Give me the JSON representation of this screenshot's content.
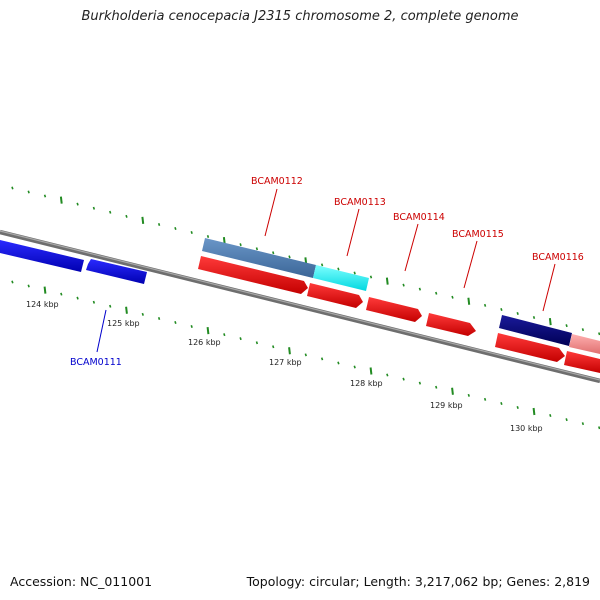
{
  "title": "Burkholderia cenocepacia J2315 chromosome 2, complete genome",
  "footer": {
    "accession": "Accession: NC_011001",
    "stats": "Topology: circular; Length: 3,217,062 bp; Genes: 2,819"
  },
  "ticks": [
    "124 kbp",
    "125 kbp",
    "126 kbp",
    "127 kbp",
    "128 kbp",
    "129 kbp",
    "130 kbp"
  ],
  "gene_labels": [
    {
      "name": "BCAM0111",
      "color": "#0000cc"
    },
    {
      "name": "BCAM0112",
      "color": "#cc0000"
    },
    {
      "name": "BCAM0113",
      "color": "#cc0000"
    },
    {
      "name": "BCAM0114",
      "color": "#cc0000"
    },
    {
      "name": "BCAM0115",
      "color": "#cc0000"
    },
    {
      "name": "BCAM0116",
      "color": "#cc0000"
    }
  ],
  "colors": {
    "backbone": "#808080",
    "tick_marks": "#228b22",
    "forward_gene": "#ff0000",
    "reverse_gene": "#0000ff"
  }
}
